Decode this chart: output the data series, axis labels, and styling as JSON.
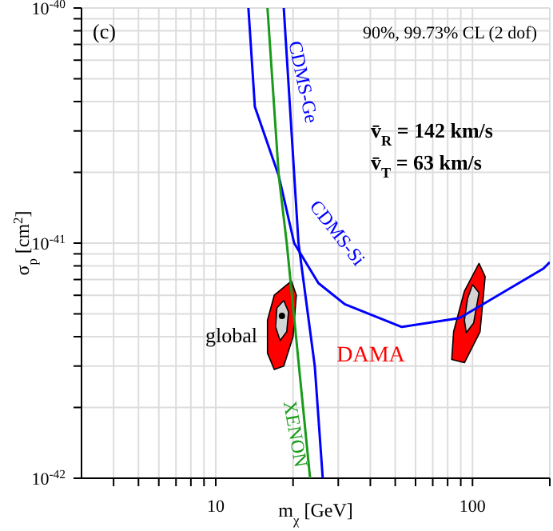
{
  "chart_data": {
    "type": "line",
    "xlabel": "m$_{χ}$ [GeV]",
    "ylabel": "σ$_{p}$ [cm$^{2}$]",
    "annotations": [
      "(c)",
      "90%, 99.73% CL (2 dof)",
      "v̄$_{R}$ = 142 km/s",
      "v̄$_{T}$ =  63 km/s",
      "global"
    ],
    "log": "xy",
    "grid": true,
    "xlim": [
      3,
      200
    ],
    "ylim": [
      1e-42,
      1e-40
    ],
    "xticks": [
      {
        "value": 4,
        "label": null
      },
      {
        "value": 5,
        "label": null
      },
      {
        "value": 6,
        "label": null
      },
      {
        "value": 7,
        "label": null
      },
      {
        "value": 8,
        "label": null
      },
      {
        "value": 9,
        "label": null
      },
      {
        "value": 10,
        "label": "10"
      },
      {
        "value": 20,
        "label": null
      },
      {
        "value": 30,
        "label": null
      },
      {
        "value": 40,
        "label": null
      },
      {
        "value": 50,
        "label": null
      },
      {
        "value": 60,
        "label": null
      },
      {
        "value": 70,
        "label": null
      },
      {
        "value": 80,
        "label": null
      },
      {
        "value": 90,
        "label": null
      },
      {
        "value": 100,
        "label": "100"
      },
      {
        "value": 200,
        "label": null
      }
    ],
    "yticks": [
      {
        "value": 1e-42,
        "label": "10$^{-42}$"
      },
      {
        "value": 2e-42,
        "label": null
      },
      {
        "value": 3e-42,
        "label": null
      },
      {
        "value": 4e-42,
        "label": null
      },
      {
        "value": 5e-42,
        "label": null
      },
      {
        "value": 6e-42,
        "label": null
      },
      {
        "value": 7e-42,
        "label": null
      },
      {
        "value": 8e-42,
        "label": null
      },
      {
        "value": 9e-42,
        "label": null
      },
      {
        "value": 1e-41,
        "label": "10$^{-41}$"
      },
      {
        "value": 2e-41,
        "label": null
      },
      {
        "value": 3e-41,
        "label": null
      },
      {
        "value": 4e-41,
        "label": null
      },
      {
        "value": 5e-41,
        "label": null
      },
      {
        "value": 6e-41,
        "label": null
      },
      {
        "value": 7e-41,
        "label": null
      },
      {
        "value": 8e-41,
        "label": null
      },
      {
        "value": 9e-41,
        "label": null
      },
      {
        "value": 1e-40,
        "label": "10$^{-40}$"
      }
    ],
    "series": [
      {
        "type": "area",
        "name": "DAMA",
        "color": "#ff0000",
        "x": [
          19.7,
          20.6,
          20.0,
          18.4,
          16.9,
          15.9,
          15.9,
          16.9,
          19.7
        ],
        "values": [
          6.9e-42,
          6e-42,
          4e-42,
          3e-42,
          2.9e-42,
          3.4e-42,
          4.7e-42,
          6e-42,
          6.9e-42
        ]
      },
      {
        "type": "area",
        "color": "#ff0000",
        "x": [
          106,
          112,
          107,
          93,
          83,
          84.4,
          93,
          106
        ],
        "values": [
          8.2e-42,
          7.2e-42,
          4.2e-42,
          3.1e-42,
          3.2e-42,
          4.2e-42,
          6.25e-42,
          8.2e-42
        ]
      },
      {
        "type": "area",
        "color": "#d3d3d3",
        "x": [
          18.4,
          19.2,
          18.9,
          17.8,
          17.1,
          17.3,
          18.4
        ],
        "values": [
          5.7e-42,
          5.1e-42,
          4.2e-42,
          3.85e-42,
          4.4e-42,
          5.3e-42,
          5.7e-42
        ]
      },
      {
        "type": "area",
        "color": "#d3d3d3",
        "x": [
          100,
          106,
          101,
          94.5,
          93,
          95.6,
          100
        ],
        "values": [
          6.65e-42,
          6.15e-42,
          4.57e-42,
          4.16e-42,
          4.7e-42,
          5.8e-42,
          6.65e-42
        ]
      },
      {
        "type": "scatter",
        "color": "#000000",
        "x": [
          18.1
        ],
        "values": [
          4.9e-42
        ]
      },
      {
        "name": "CDMS-Ge",
        "color": "#0000ff",
        "x": [
          18.4,
          21,
          24.3,
          26.1
        ],
        "values": [
          1e-40,
          1e-41,
          3e-42,
          1e-42
        ]
      },
      {
        "name": "CDMS-Si",
        "color": "#0000ff",
        "x": [
          13.4,
          14.2,
          17.6,
          20.2,
          25.1,
          31.8,
          53,
          89,
          189,
          200
        ],
        "values": [
          1e-40,
          3.8e-41,
          1.93e-41,
          1e-41,
          6.76e-42,
          5.5e-42,
          4.4e-42,
          4.8e-42,
          7.8e-42,
          8.3e-42
        ]
      },
      {
        "name": "XENON",
        "color": "#1a9a1a",
        "x": [
          15.9,
          17.6,
          18.9,
          23.3
        ],
        "values": [
          1e-40,
          1.93e-41,
          1e-41,
          1e-42
        ]
      }
    ]
  }
}
